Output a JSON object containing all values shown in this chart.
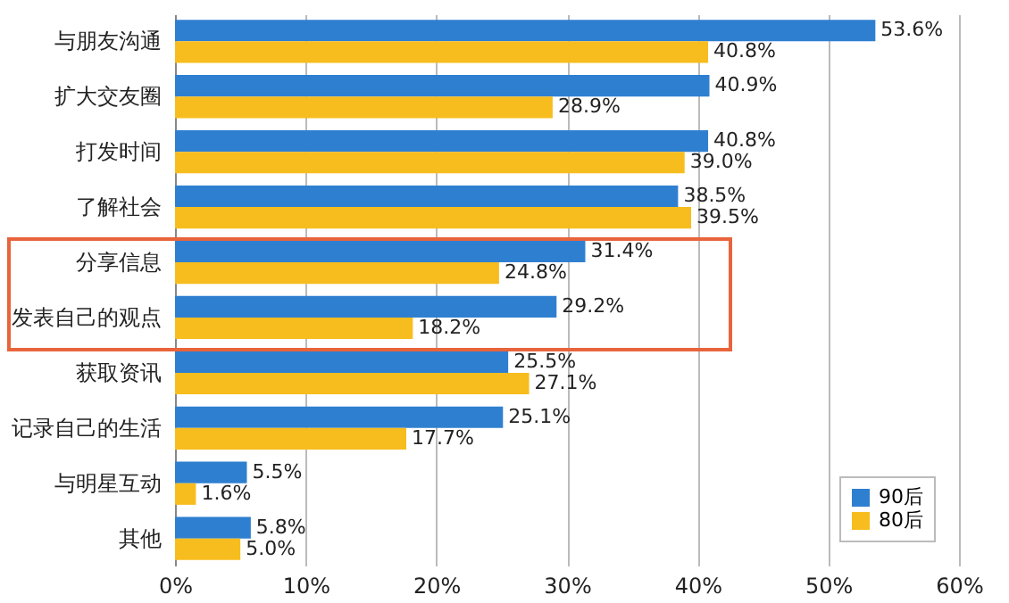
{
  "chart_data": {
    "type": "bar",
    "orientation": "horizontal",
    "categories": [
      "与朋友沟通",
      "扩大交友圈",
      "打发时间",
      "了解社会",
      "分享信息",
      "发表自己的观点",
      "获取资讯",
      "记录自己的生活",
      "与明星互动",
      "其他"
    ],
    "series": [
      {
        "name": "90后",
        "color": "#2f7fd1",
        "values": [
          53.6,
          40.9,
          40.8,
          38.5,
          31.4,
          29.2,
          25.5,
          25.1,
          5.5,
          5.8
        ],
        "value_labels": [
          "53.6%",
          "40.9%",
          "40.8%",
          "38.5%",
          "31.4%",
          "29.2%",
          "25.5%",
          "25.1%",
          "5.5%",
          "5.8%"
        ]
      },
      {
        "name": "80后",
        "color": "#f7bd1e",
        "values": [
          40.8,
          28.9,
          39.0,
          39.5,
          24.8,
          18.2,
          27.1,
          17.7,
          1.6,
          5.0
        ],
        "value_labels": [
          "40.8%",
          "28.9%",
          "39.0%",
          "39.5%",
          "24.8%",
          "18.2%",
          "27.1%",
          "17.7%",
          "1.6%",
          "5.0%"
        ]
      }
    ],
    "xlim": [
      0,
      60
    ],
    "xticks": [
      {
        "value": 0,
        "label": "0%"
      },
      {
        "value": 10,
        "label": "10%"
      },
      {
        "value": 20,
        "label": "20%"
      },
      {
        "value": 30,
        "label": "30%"
      },
      {
        "value": 40,
        "label": "40%"
      },
      {
        "value": 50,
        "label": "50%"
      },
      {
        "value": 60,
        "label": "60%"
      }
    ],
    "grid": "x",
    "legend": "bottom right"
  }
}
